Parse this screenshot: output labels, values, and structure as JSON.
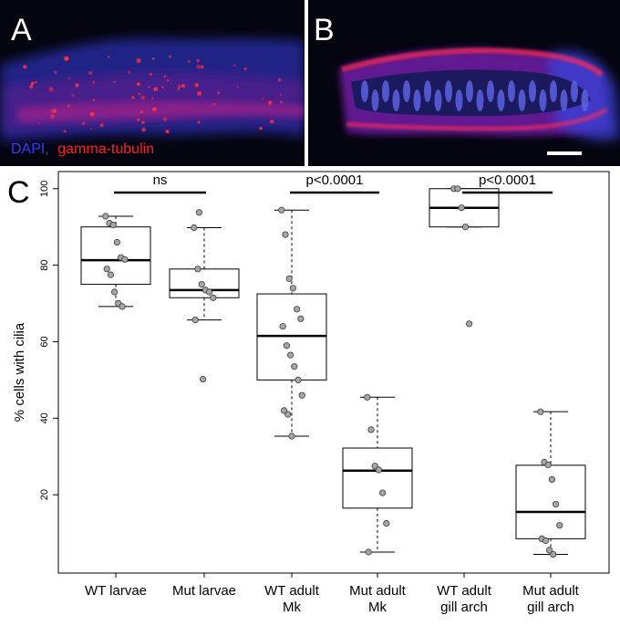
{
  "panels": {
    "a": {
      "letter": "A"
    },
    "b": {
      "letter": "B"
    },
    "c": {
      "letter": "C"
    }
  },
  "stain_legend": {
    "dapi": {
      "text": "DAPI,",
      "color": "#3b3bff"
    },
    "gamma": {
      "text": "gamma-tubulin",
      "color": "#ff2020"
    }
  },
  "chart_data": {
    "type": "box",
    "ylabel": "% cells with cilia",
    "ylim": [
      0,
      104
    ],
    "yticks": [
      20,
      40,
      60,
      80,
      100
    ],
    "categories": [
      [
        "WT larvae"
      ],
      [
        "Mut larvae"
      ],
      [
        "WT adult",
        "Mk"
      ],
      [
        "Mut adult",
        "Mk"
      ],
      [
        "WT adult",
        "gill arch"
      ],
      [
        "Mut adult",
        "gill arch"
      ]
    ],
    "boxes": [
      {
        "q1": 75,
        "median": 81.3,
        "q3": 90,
        "whisker_low": 69.2,
        "whisker_high": 92.8,
        "points": [
          92.8,
          91,
          90.5,
          86,
          82,
          81.5,
          79,
          77.5,
          73,
          70,
          69.2
        ],
        "outliers": []
      },
      {
        "q1": 71.5,
        "median": 73.5,
        "q3": 79,
        "whisker_low": 65.7,
        "whisker_high": 89.8,
        "points": [
          89.8,
          79,
          75,
          73.5,
          73,
          71.5,
          65.7
        ],
        "outliers": [
          93.8,
          50.2
        ]
      },
      {
        "q1": 50,
        "median": 61.5,
        "q3": 72.5,
        "whisker_low": 35.3,
        "whisker_high": 94.4,
        "points": [
          94.4,
          88,
          76.5,
          74,
          68.5,
          66,
          64,
          59,
          56.5,
          53.5,
          50,
          46,
          42,
          41,
          35.3
        ],
        "outliers": []
      },
      {
        "q1": 16.5,
        "median": 26.3,
        "q3": 32.2,
        "whisker_low": 5,
        "whisker_high": 45.5,
        "points": [
          45.5,
          37,
          27.5,
          26.5,
          20.5,
          12.5,
          5
        ],
        "outliers": []
      },
      {
        "q1": 90,
        "median": 95,
        "q3": 100,
        "whisker_low": 90,
        "whisker_high": 100,
        "points": [
          100,
          100,
          95,
          90
        ],
        "outliers": [
          64.7
        ]
      },
      {
        "q1": 8.5,
        "median": 15.5,
        "q3": 27.7,
        "whisker_low": 4.4,
        "whisker_high": 41.7,
        "points": [
          41.7,
          28.5,
          27.8,
          24,
          17.5,
          12,
          8.5,
          8,
          5.5,
          4.4
        ],
        "outliers": []
      }
    ],
    "comparisons": [
      {
        "from": 0,
        "to": 1,
        "label": "ns"
      },
      {
        "from": 2,
        "to": 3,
        "label": "p<0.0001"
      },
      {
        "from": 4,
        "to": 5,
        "label": "p<0.0001"
      }
    ]
  }
}
